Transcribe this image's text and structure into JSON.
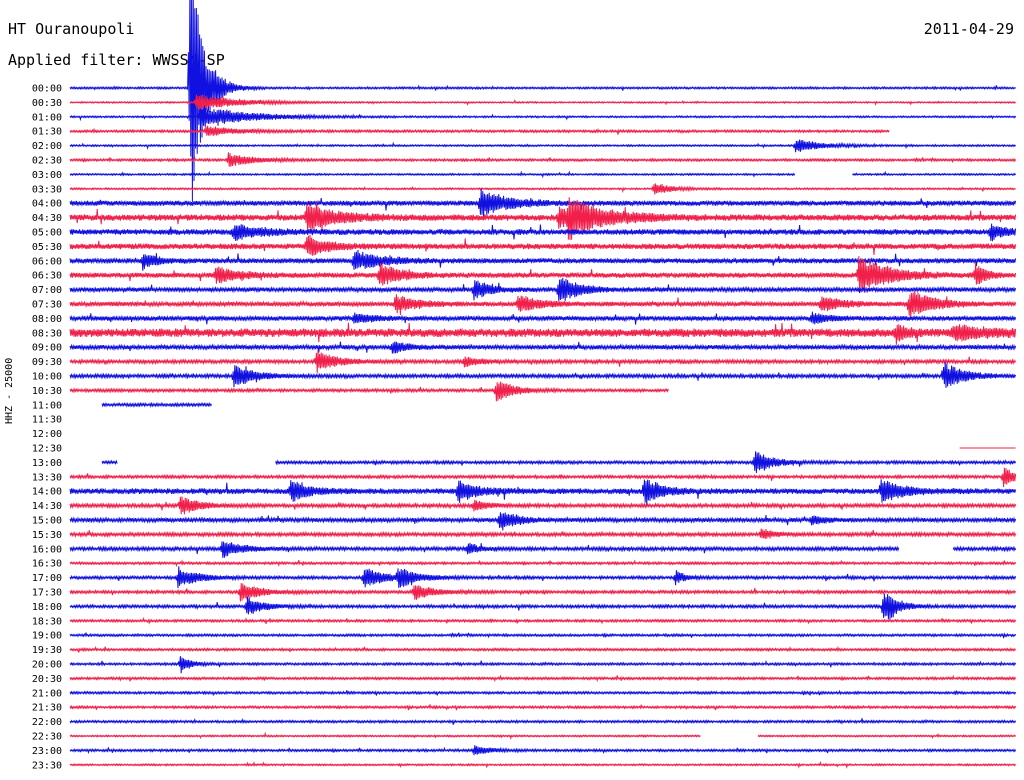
{
  "header": {
    "station": "HT Ouranoupoli",
    "date": "2011-04-29",
    "filter": "Applied filter: WWSSN-SP",
    "channel_label": "HHZ - 25000"
  },
  "colors": {
    "even_trace": "#1010e0",
    "odd_trace": "#f0204a",
    "text": "#000000"
  },
  "chart_data": {
    "type": "line",
    "title": "HT Ouranoupoli",
    "ylabel": "HHZ - 25000",
    "grid": false,
    "row_labels": [
      "00:00",
      "00:30",
      "01:00",
      "01:30",
      "02:00",
      "02:30",
      "03:00",
      "03:30",
      "04:00",
      "04:30",
      "05:00",
      "05:30",
      "06:00",
      "06:30",
      "07:00",
      "07:30",
      "08:00",
      "08:30",
      "09:00",
      "09:30",
      "10:00",
      "10:30",
      "11:00",
      "11:30",
      "12:00",
      "12:30",
      "13:00",
      "13:30",
      "14:00",
      "14:30",
      "15:00",
      "15:30",
      "16:00",
      "16:30",
      "17:00",
      "17:30",
      "18:00",
      "18:30",
      "19:00",
      "19:30",
      "20:00",
      "20:30",
      "21:00",
      "21:30",
      "22:00",
      "22:30",
      "23:00",
      "23:30"
    ],
    "row_minutes": 30,
    "noise": [
      0.7,
      0.5,
      0.6,
      0.8,
      0.6,
      0.8,
      0.6,
      0.6,
      1.8,
      2.2,
      2.0,
      2.0,
      1.8,
      1.8,
      1.5,
      1.5,
      1.6,
      3.0,
      1.5,
      1.2,
      1.2,
      1.0,
      1.0,
      0,
      0,
      0,
      1.0,
      1.0,
      2.0,
      1.2,
      1.4,
      1.2,
      1.2,
      0.8,
      1.0,
      1.0,
      1.0,
      0.8,
      0.8,
      0.8,
      0.8,
      0.8,
      0.8,
      0.8,
      0.8,
      0.6,
      0.8,
      0.6
    ],
    "gaps": [
      {
        "row": 3,
        "from": 26.0,
        "to": 30
      },
      {
        "row": 6,
        "from": 23.0,
        "to": 24.8
      },
      {
        "row": 21,
        "from": 19.0,
        "to": 30
      },
      {
        "row": 22,
        "from": 0,
        "to": 1.0
      },
      {
        "row": 22,
        "from": 4.5,
        "to": 30
      },
      {
        "row": 23,
        "from": 0,
        "to": 30
      },
      {
        "row": 24,
        "from": 0,
        "to": 30
      },
      {
        "row": 25,
        "from": 0,
        "to": 28.2
      },
      {
        "row": 26,
        "from": 0,
        "to": 1.0
      },
      {
        "row": 26,
        "from": 1.5,
        "to": 6.5
      },
      {
        "row": 32,
        "from": 26.3,
        "to": 28.0
      },
      {
        "row": 45,
        "from": 20.0,
        "to": 21.8
      }
    ],
    "events": [
      {
        "row": 0,
        "minute": 3.8,
        "amp": 140,
        "decay": 0.4
      },
      {
        "row": 1,
        "minute": 4.0,
        "amp": 9,
        "decay": 1.2
      },
      {
        "row": 2,
        "minute": 4.1,
        "amp": 12,
        "decay": 1.4
      },
      {
        "row": 3,
        "minute": 4.3,
        "amp": 5,
        "decay": 1.0
      },
      {
        "row": 4,
        "minute": 23.0,
        "amp": 7,
        "decay": 0.8
      },
      {
        "row": 5,
        "minute": 5.0,
        "amp": 7,
        "decay": 0.8
      },
      {
        "row": 7,
        "minute": 18.5,
        "amp": 7,
        "decay": 0.5
      },
      {
        "row": 8,
        "minute": 13.0,
        "amp": 14,
        "decay": 0.8
      },
      {
        "row": 9,
        "minute": 7.5,
        "amp": 14,
        "decay": 0.9
      },
      {
        "row": 9,
        "minute": 15.5,
        "amp": 10,
        "decay": 0.7
      },
      {
        "row": 9,
        "minute": 15.8,
        "amp": 16,
        "decay": 1.2
      },
      {
        "row": 10,
        "minute": 5.2,
        "amp": 8,
        "decay": 0.8
      },
      {
        "row": 10,
        "minute": 29.2,
        "amp": 8,
        "decay": 0.4
      },
      {
        "row": 11,
        "minute": 7.5,
        "amp": 10,
        "decay": 0.6
      },
      {
        "row": 12,
        "minute": 2.3,
        "amp": 9,
        "decay": 0.4
      },
      {
        "row": 12,
        "minute": 9.0,
        "amp": 10,
        "decay": 0.8
      },
      {
        "row": 13,
        "minute": 4.6,
        "amp": 8,
        "decay": 0.7
      },
      {
        "row": 13,
        "minute": 9.8,
        "amp": 12,
        "decay": 0.6
      },
      {
        "row": 13,
        "minute": 25.0,
        "amp": 20,
        "decay": 0.9
      },
      {
        "row": 13,
        "minute": 28.7,
        "amp": 12,
        "decay": 0.3
      },
      {
        "row": 14,
        "minute": 12.8,
        "amp": 10,
        "decay": 0.5
      },
      {
        "row": 14,
        "minute": 15.5,
        "amp": 14,
        "decay": 0.6
      },
      {
        "row": 15,
        "minute": 10.3,
        "amp": 9,
        "decay": 0.7
      },
      {
        "row": 15,
        "minute": 14.2,
        "amp": 9,
        "decay": 0.7
      },
      {
        "row": 15,
        "minute": 23.8,
        "amp": 8,
        "decay": 0.7
      },
      {
        "row": 15,
        "minute": 26.6,
        "amp": 16,
        "decay": 0.7
      },
      {
        "row": 16,
        "minute": 9.0,
        "amp": 5,
        "decay": 0.6
      },
      {
        "row": 16,
        "minute": 23.5,
        "amp": 6,
        "decay": 0.5
      },
      {
        "row": 17,
        "minute": 26.2,
        "amp": 10,
        "decay": 0.3
      },
      {
        "row": 17,
        "minute": 28.0,
        "amp": 6,
        "decay": 1.2
      },
      {
        "row": 18,
        "minute": 10.2,
        "amp": 6,
        "decay": 0.5
      },
      {
        "row": 19,
        "minute": 7.8,
        "amp": 12,
        "decay": 0.6
      },
      {
        "row": 19,
        "minute": 12.5,
        "amp": 5,
        "decay": 0.5
      },
      {
        "row": 20,
        "minute": 5.2,
        "amp": 12,
        "decay": 0.6
      },
      {
        "row": 20,
        "minute": 27.7,
        "amp": 15,
        "decay": 0.6
      },
      {
        "row": 21,
        "minute": 13.5,
        "amp": 14,
        "decay": 0.5
      },
      {
        "row": 26,
        "minute": 21.7,
        "amp": 14,
        "decay": 0.5
      },
      {
        "row": 27,
        "minute": 29.6,
        "amp": 10,
        "decay": 0.4
      },
      {
        "row": 28,
        "minute": 7.0,
        "amp": 11,
        "decay": 0.5
      },
      {
        "row": 28,
        "minute": 12.3,
        "amp": 12,
        "decay": 0.5
      },
      {
        "row": 28,
        "minute": 18.2,
        "amp": 14,
        "decay": 0.5
      },
      {
        "row": 28,
        "minute": 25.7,
        "amp": 13,
        "decay": 0.6
      },
      {
        "row": 29,
        "minute": 3.5,
        "amp": 11,
        "decay": 0.5
      },
      {
        "row": 29,
        "minute": 12.8,
        "amp": 6,
        "decay": 0.4
      },
      {
        "row": 30,
        "minute": 13.6,
        "amp": 12,
        "decay": 0.5
      },
      {
        "row": 30,
        "minute": 23.5,
        "amp": 5,
        "decay": 0.4
      },
      {
        "row": 31,
        "minute": 21.9,
        "amp": 6,
        "decay": 0.4
      },
      {
        "row": 32,
        "minute": 4.8,
        "amp": 9,
        "decay": 0.6
      },
      {
        "row": 32,
        "minute": 12.6,
        "amp": 6,
        "decay": 0.3
      },
      {
        "row": 34,
        "minute": 3.4,
        "amp": 11,
        "decay": 0.6
      },
      {
        "row": 34,
        "minute": 9.3,
        "amp": 10,
        "decay": 0.7
      },
      {
        "row": 34,
        "minute": 10.4,
        "amp": 9,
        "decay": 0.6
      },
      {
        "row": 34,
        "minute": 19.2,
        "amp": 7,
        "decay": 0.3
      },
      {
        "row": 35,
        "minute": 5.4,
        "amp": 10,
        "decay": 0.6
      },
      {
        "row": 35,
        "minute": 10.9,
        "amp": 8,
        "decay": 0.6
      },
      {
        "row": 36,
        "minute": 5.6,
        "amp": 10,
        "decay": 0.5
      },
      {
        "row": 36,
        "minute": 25.8,
        "amp": 20,
        "decay": 0.4
      },
      {
        "row": 40,
        "minute": 3.5,
        "amp": 10,
        "decay": 0.3
      },
      {
        "row": 46,
        "minute": 12.8,
        "amp": 5,
        "decay": 0.5
      }
    ]
  }
}
